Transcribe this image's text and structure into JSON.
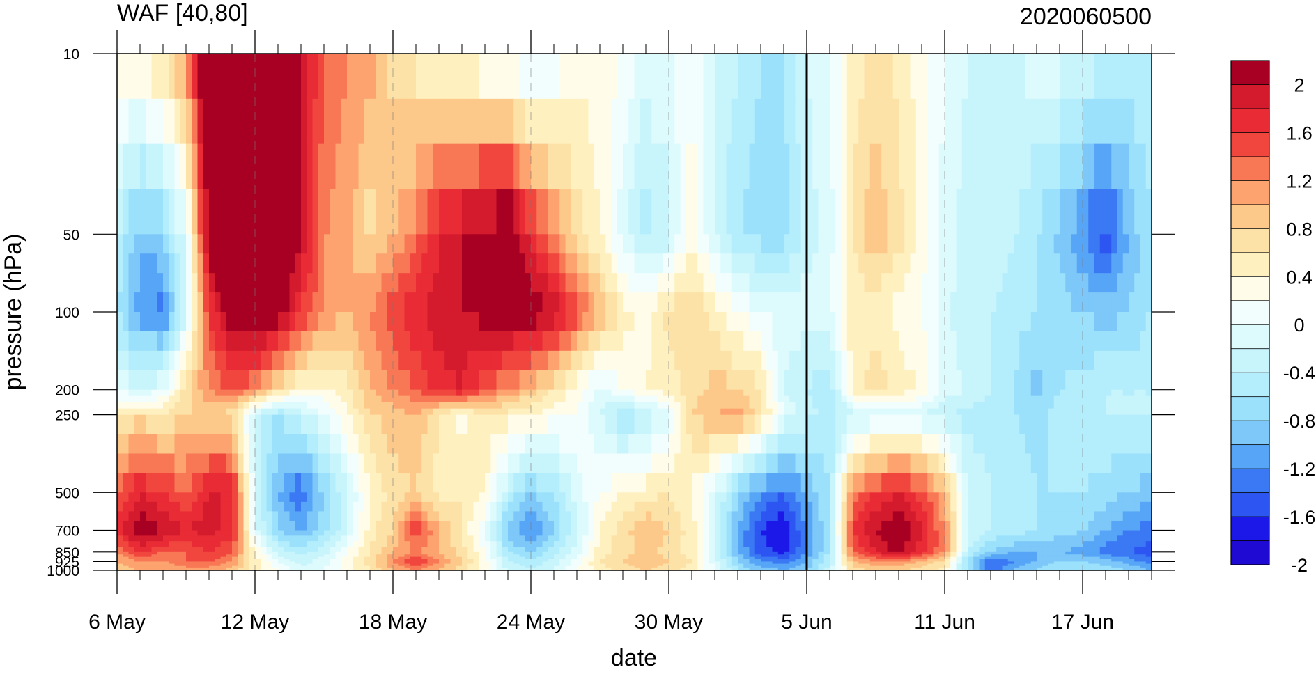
{
  "chart_data": {
    "type": "heatmap",
    "title": "WAF [40,80]",
    "subtitle": "2020060500",
    "xlabel": "date",
    "ylabel": "pressure (hPa)",
    "x_ticks": [
      "6 May",
      "12 May",
      "18 May",
      "24 May",
      "30 May",
      "5 Jun",
      "11 Jun",
      "17 Jun"
    ],
    "y_ticks": [
      "10",
      "50",
      "100",
      "200",
      "250",
      "500",
      "700",
      "850",
      "925",
      "1000"
    ],
    "y_values": [
      10,
      50,
      100,
      200,
      250,
      500,
      700,
      850,
      925,
      1000
    ],
    "y_scale": "log",
    "y_reversed": true,
    "x_range_days": [
      0,
      45
    ],
    "vertical_marker": "5 Jun",
    "colorbar": {
      "labels": [
        "2",
        "1.6",
        "1.2",
        "0.8",
        "0.4",
        "0",
        "-0.4",
        "-0.8",
        "-1.2",
        "-1.6",
        "-2"
      ],
      "levels": [
        -2.2,
        -2,
        -1.8,
        -1.6,
        -1.4,
        -1.2,
        -1,
        -0.8,
        -0.6,
        -0.4,
        -0.2,
        0,
        0.2,
        0.4,
        0.6,
        0.8,
        1,
        1.2,
        1.4,
        1.6,
        1.8,
        2,
        2.2
      ],
      "colors": [
        "#1e0ad2",
        "#1c18e8",
        "#2d55f2",
        "#3b78f4",
        "#57a5f6",
        "#7dc7f9",
        "#9be1fb",
        "#b4eefc",
        "#c8f4fc",
        "#ddfafd",
        "#f2fefe",
        "#fffcea",
        "#fff0c0",
        "#fde2a8",
        "#fdc98a",
        "#fca36f",
        "#f87856",
        "#f0463e",
        "#e92b36",
        "#d41a2d",
        "#a80022"
      ]
    },
    "grid": "dashed vertical at major ticks",
    "values": [
      [
        0.2,
        0.3,
        0.5,
        1.0,
        2.5,
        2.8,
        2.8,
        2.5,
        1.8,
        1.2,
        1.0,
        0.9,
        0.5,
        0.3,
        0.2,
        0.1,
        -0.1,
        -0.2,
        -0.4,
        -0.2,
        0.1,
        0.1,
        0.0,
        -0.3,
        -0.2,
        0.0,
        -0.4,
        -0.6,
        -0.8,
        -0.8,
        -0.4,
        -0.2,
        0.3,
        0.5,
        0.3,
        0.1,
        -0.2,
        -0.4,
        -0.4,
        -0.4,
        -0.3,
        -0.3,
        -0.4,
        -0.5,
        -0.6,
        -0.6
      ],
      [
        -0.6,
        -1.2,
        -1.0,
        -0.3,
        2.0,
        2.5,
        2.8,
        2.5,
        1.8,
        1.0,
        0.9,
        0.5,
        0.8,
        1.1,
        1.6,
        1.8,
        2.0,
        2.2,
        1.5,
        1.0,
        0.5,
        0.2,
        -0.3,
        -0.7,
        -0.5,
        0.1,
        -0.4,
        -0.8,
        -0.9,
        -0.9,
        -0.5,
        -0.3,
        0.4,
        0.8,
        0.5,
        0.1,
        -0.3,
        -0.5,
        -0.5,
        -0.6,
        -0.8,
        -1.1,
        -1.4,
        -1.8,
        -1.2,
        -0.8
      ],
      [
        -0.8,
        -1.3,
        -1.5,
        -0.4,
        1.4,
        2.0,
        2.2,
        2.0,
        1.4,
        1.0,
        0.8,
        1.0,
        1.3,
        1.6,
        1.7,
        1.8,
        1.9,
        2.0,
        2.0,
        1.8,
        1.3,
        0.8,
        0.3,
        0.1,
        0.5,
        0.6,
        0.3,
        0.0,
        -0.2,
        -0.3,
        -0.3,
        -0.2,
        0.3,
        0.3,
        0.1,
        0.0,
        -0.3,
        -0.6,
        -0.6,
        -0.7,
        -0.8,
        -0.9,
        -1.0,
        -1.1,
        -1.0,
        -0.8
      ],
      [
        -0.2,
        -0.4,
        -0.2,
        0.5,
        1.0,
        1.2,
        1.0,
        0.5,
        0.2,
        0.1,
        0.3,
        0.8,
        1.0,
        1.2,
        1.5,
        1.6,
        1.2,
        1.0,
        0.7,
        0.4,
        0.1,
        -0.3,
        0.0,
        0.2,
        0.3,
        0.5,
        0.7,
        0.6,
        0.4,
        -0.4,
        -0.6,
        -0.8,
        0.3,
        0.5,
        0.3,
        0.2,
        -0.3,
        -0.4,
        -0.6,
        -0.8,
        -1.1,
        -0.8,
        -0.7,
        -0.6,
        -0.6,
        -0.6
      ],
      [
        0.3,
        0.5,
        0.4,
        0.6,
        0.6,
        0.5,
        -0.5,
        -0.8,
        -0.5,
        -0.2,
        0.2,
        0.6,
        0.7,
        0.8,
        0.4,
        0.1,
        0.4,
        0.3,
        0.2,
        0.1,
        0.0,
        -0.4,
        -0.8,
        -0.6,
        -0.3,
        0.6,
        0.8,
        0.9,
        0.5,
        -0.2,
        -0.5,
        -0.7,
        -0.5,
        -0.4,
        -0.3,
        -0.4,
        -0.6,
        -0.7,
        -0.7,
        -0.8,
        -0.9,
        -0.7,
        -0.6,
        -0.6,
        -0.6,
        -0.6
      ],
      [
        1.2,
        1.6,
        1.4,
        1.2,
        1.6,
        1.6,
        -0.4,
        -1.2,
        -1.6,
        -1.0,
        -0.5,
        0.2,
        0.5,
        0.6,
        0.3,
        0.4,
        0.2,
        -0.6,
        -1.0,
        -0.8,
        -0.3,
        0.0,
        0.2,
        0.3,
        0.4,
        0.2,
        -0.3,
        -1.0,
        -1.4,
        -1.6,
        -1.2,
        -0.8,
        1.0,
        1.4,
        1.6,
        1.3,
        0.8,
        -0.4,
        -0.6,
        -0.7,
        -0.8,
        -0.8,
        -0.8,
        -0.9,
        -1.0,
        -1.1
      ],
      [
        1.5,
        2.0,
        1.8,
        1.6,
        1.7,
        1.5,
        -0.3,
        -1.0,
        -1.2,
        -0.9,
        -0.4,
        0.3,
        0.6,
        1.4,
        0.8,
        0.4,
        -0.2,
        -1.1,
        -1.4,
        -1.0,
        -0.5,
        0.2,
        0.5,
        0.8,
        0.6,
        0.3,
        -0.4,
        -1.2,
        -1.8,
        -2.0,
        -1.4,
        -0.8,
        1.4,
        1.8,
        2.0,
        1.6,
        1.0,
        -0.4,
        -0.6,
        -0.7,
        -0.8,
        -0.9,
        -1.0,
        -1.2,
        -1.4,
        -1.5
      ],
      [
        1.0,
        1.4,
        1.2,
        1.2,
        1.4,
        1.2,
        0.2,
        -0.5,
        -0.7,
        -0.5,
        0.0,
        0.4,
        0.8,
        1.0,
        0.8,
        0.5,
        0.0,
        -0.8,
        -1.0,
        -0.7,
        -0.3,
        0.3,
        0.5,
        0.7,
        0.5,
        0.3,
        -0.4,
        -1.2,
        -1.7,
        -1.9,
        -1.4,
        -0.8,
        1.2,
        1.6,
        1.9,
        1.5,
        1.0,
        -0.6,
        -1.0,
        -1.2,
        -1.2,
        -1.2,
        -1.3,
        -1.5,
        -1.6,
        -1.7
      ],
      [
        0.8,
        1.0,
        1.0,
        1.2,
        1.2,
        1.0,
        0.3,
        -0.2,
        -0.5,
        -0.3,
        0.1,
        0.5,
        1.0,
        1.4,
        1.0,
        0.6,
        0.1,
        -0.6,
        -0.8,
        -0.5,
        -0.1,
        0.4,
        0.6,
        0.8,
        0.6,
        0.4,
        -0.3,
        -1.0,
        -1.4,
        -1.5,
        -1.2,
        -0.6,
        0.8,
        1.0,
        1.0,
        0.8,
        0.5,
        -0.9,
        -1.6,
        -1.4,
        -1.2,
        -1.0,
        -1.0,
        -1.1,
        -1.3,
        -1.5
      ],
      [
        0.6,
        0.8,
        0.8,
        0.9,
        0.9,
        0.7,
        0.3,
        0.0,
        -0.3,
        -0.2,
        0.1,
        0.4,
        0.8,
        1.0,
        0.8,
        0.5,
        0.1,
        -0.4,
        -0.6,
        -0.4,
        0.0,
        0.3,
        0.5,
        0.6,
        0.5,
        0.3,
        -0.2,
        -0.8,
        -1.1,
        -1.2,
        -1.0,
        -0.5,
        0.5,
        0.6,
        0.6,
        0.5,
        0.3,
        -0.9,
        -1.5,
        -1.2,
        -1.0,
        -0.8,
        -0.8,
        -0.9,
        -1.0,
        -1.2
      ]
    ]
  }
}
